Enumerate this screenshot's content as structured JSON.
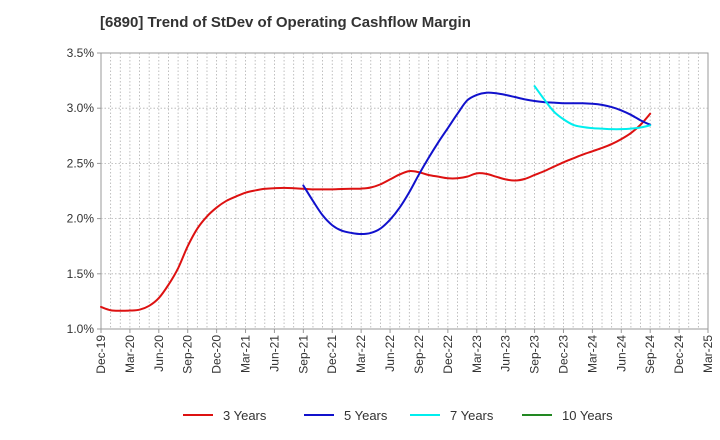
{
  "chart_data": {
    "type": "line",
    "title": "[6890]  Trend of StDev of Operating Cashflow Margin",
    "xlabel": "",
    "ylabel": "",
    "ylim": [
      1.0,
      3.5
    ],
    "yticks": [
      "1.0%",
      "1.5%",
      "2.0%",
      "2.5%",
      "3.0%",
      "3.5%"
    ],
    "ytick_values": [
      1.0,
      1.5,
      2.0,
      2.5,
      3.0,
      3.5
    ],
    "x_start": "Dec-19",
    "x_months": 63,
    "xticks": [
      "Dec-19",
      "Mar-20",
      "Jun-20",
      "Sep-20",
      "Dec-20",
      "Mar-21",
      "Jun-21",
      "Sep-21",
      "Dec-21",
      "Mar-22",
      "Jun-22",
      "Sep-22",
      "Dec-22",
      "Mar-23",
      "Jun-23",
      "Sep-23",
      "Dec-23",
      "Mar-24",
      "Jun-24",
      "Sep-24",
      "Dec-24",
      "Mar-25"
    ],
    "grid": true,
    "legend_position": "bottom",
    "series": [
      {
        "name": "3 Years",
        "color": "#dd1111",
        "x_month_index": [
          0,
          1,
          2,
          3,
          4,
          5,
          6,
          7,
          8,
          9,
          10,
          11,
          12,
          13,
          14,
          15,
          16,
          17,
          18,
          19,
          20,
          21,
          22,
          23,
          24,
          25,
          26,
          27,
          28,
          29,
          30,
          31,
          32,
          33,
          34,
          35,
          36,
          37,
          38,
          39,
          40,
          41,
          42,
          43,
          44,
          45,
          46,
          47,
          48,
          49,
          50,
          51,
          52,
          53,
          54,
          55,
          56,
          57
        ],
        "values": [
          1.2,
          1.17,
          1.165,
          1.167,
          1.175,
          1.21,
          1.28,
          1.4,
          1.55,
          1.75,
          1.91,
          2.02,
          2.1,
          2.16,
          2.2,
          2.235,
          2.255,
          2.27,
          2.275,
          2.278,
          2.275,
          2.27,
          2.265,
          2.265,
          2.265,
          2.268,
          2.27,
          2.272,
          2.282,
          2.31,
          2.355,
          2.4,
          2.43,
          2.42,
          2.395,
          2.38,
          2.365,
          2.365,
          2.38,
          2.41,
          2.405,
          2.38,
          2.355,
          2.345,
          2.36,
          2.395,
          2.43,
          2.47,
          2.51,
          2.545,
          2.58,
          2.61,
          2.64,
          2.675,
          2.72,
          2.775,
          2.85,
          2.95
        ]
      },
      {
        "name": "5 Years",
        "color": "#1111cc",
        "x_month_index": [
          21,
          22,
          23,
          24,
          25,
          26,
          27,
          28,
          29,
          30,
          31,
          32,
          33,
          34,
          35,
          36,
          37,
          38,
          39,
          40,
          41,
          42,
          43,
          44,
          45,
          46,
          47,
          48,
          49,
          50,
          51,
          52,
          53,
          54,
          55,
          56,
          57
        ],
        "values": [
          2.3,
          2.16,
          2.03,
          1.94,
          1.89,
          1.87,
          1.86,
          1.87,
          1.91,
          1.99,
          2.1,
          2.24,
          2.4,
          2.55,
          2.69,
          2.82,
          2.95,
          3.07,
          3.12,
          3.14,
          3.135,
          3.12,
          3.1,
          3.08,
          3.065,
          3.055,
          3.05,
          3.045,
          3.045,
          3.045,
          3.04,
          3.03,
          3.01,
          2.98,
          2.94,
          2.89,
          2.85
        ]
      },
      {
        "name": "7 Years",
        "color": "#00eeee",
        "x_month_index": [
          45,
          46,
          47,
          48,
          49,
          50,
          51,
          52,
          53,
          54,
          55,
          56,
          57
        ],
        "values": [
          3.2,
          3.08,
          2.97,
          2.9,
          2.85,
          2.83,
          2.82,
          2.815,
          2.81,
          2.81,
          2.815,
          2.825,
          2.845
        ]
      },
      {
        "name": "10 Years",
        "color": "#228822",
        "x_month_index": [],
        "values": []
      }
    ]
  }
}
